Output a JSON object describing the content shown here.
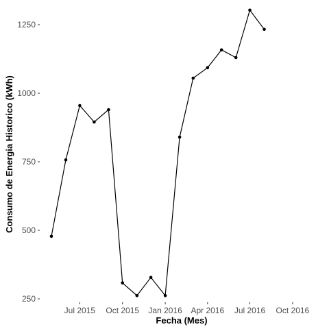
{
  "chart_data": {
    "type": "line",
    "title": "",
    "xlabel": "Fecha (Mes)",
    "ylabel": "Consumo de Energia Historico (kWh)",
    "grid": false,
    "ylim": [
      240,
      1310
    ],
    "xlim": [
      "2015-05-01",
      "2016-10-10"
    ],
    "yticks": [
      250,
      500,
      750,
      1000,
      1250
    ],
    "xticks": [
      {
        "date": "2015-07-01",
        "label": "Jul 2015"
      },
      {
        "date": "2015-10-01",
        "label": "Oct 2015"
      },
      {
        "date": "2016-01-01",
        "label": "Jan 2016"
      },
      {
        "date": "2016-04-01",
        "label": "Apr 2016"
      },
      {
        "date": "2016-07-01",
        "label": "Jul 2016"
      },
      {
        "date": "2016-10-01",
        "label": "Oct 2016"
      }
    ],
    "series": [
      {
        "color": "#000000",
        "points": [
          {
            "x": "2015-05-01",
            "y": 478
          },
          {
            "x": "2015-06-01",
            "y": 757
          },
          {
            "x": "2015-07-01",
            "y": 955
          },
          {
            "x": "2015-08-01",
            "y": 895
          },
          {
            "x": "2015-09-01",
            "y": 940
          },
          {
            "x": "2015-10-01",
            "y": 308
          },
          {
            "x": "2015-11-01",
            "y": 262
          },
          {
            "x": "2015-12-01",
            "y": 328
          },
          {
            "x": "2016-01-01",
            "y": 262
          },
          {
            "x": "2016-02-01",
            "y": 840
          },
          {
            "x": "2016-03-01",
            "y": 1055
          },
          {
            "x": "2016-04-01",
            "y": 1093
          },
          {
            "x": "2016-05-01",
            "y": 1158
          },
          {
            "x": "2016-06-01",
            "y": 1130
          },
          {
            "x": "2016-07-01",
            "y": 1303
          },
          {
            "x": "2016-08-01",
            "y": 1233
          }
        ]
      }
    ]
  }
}
